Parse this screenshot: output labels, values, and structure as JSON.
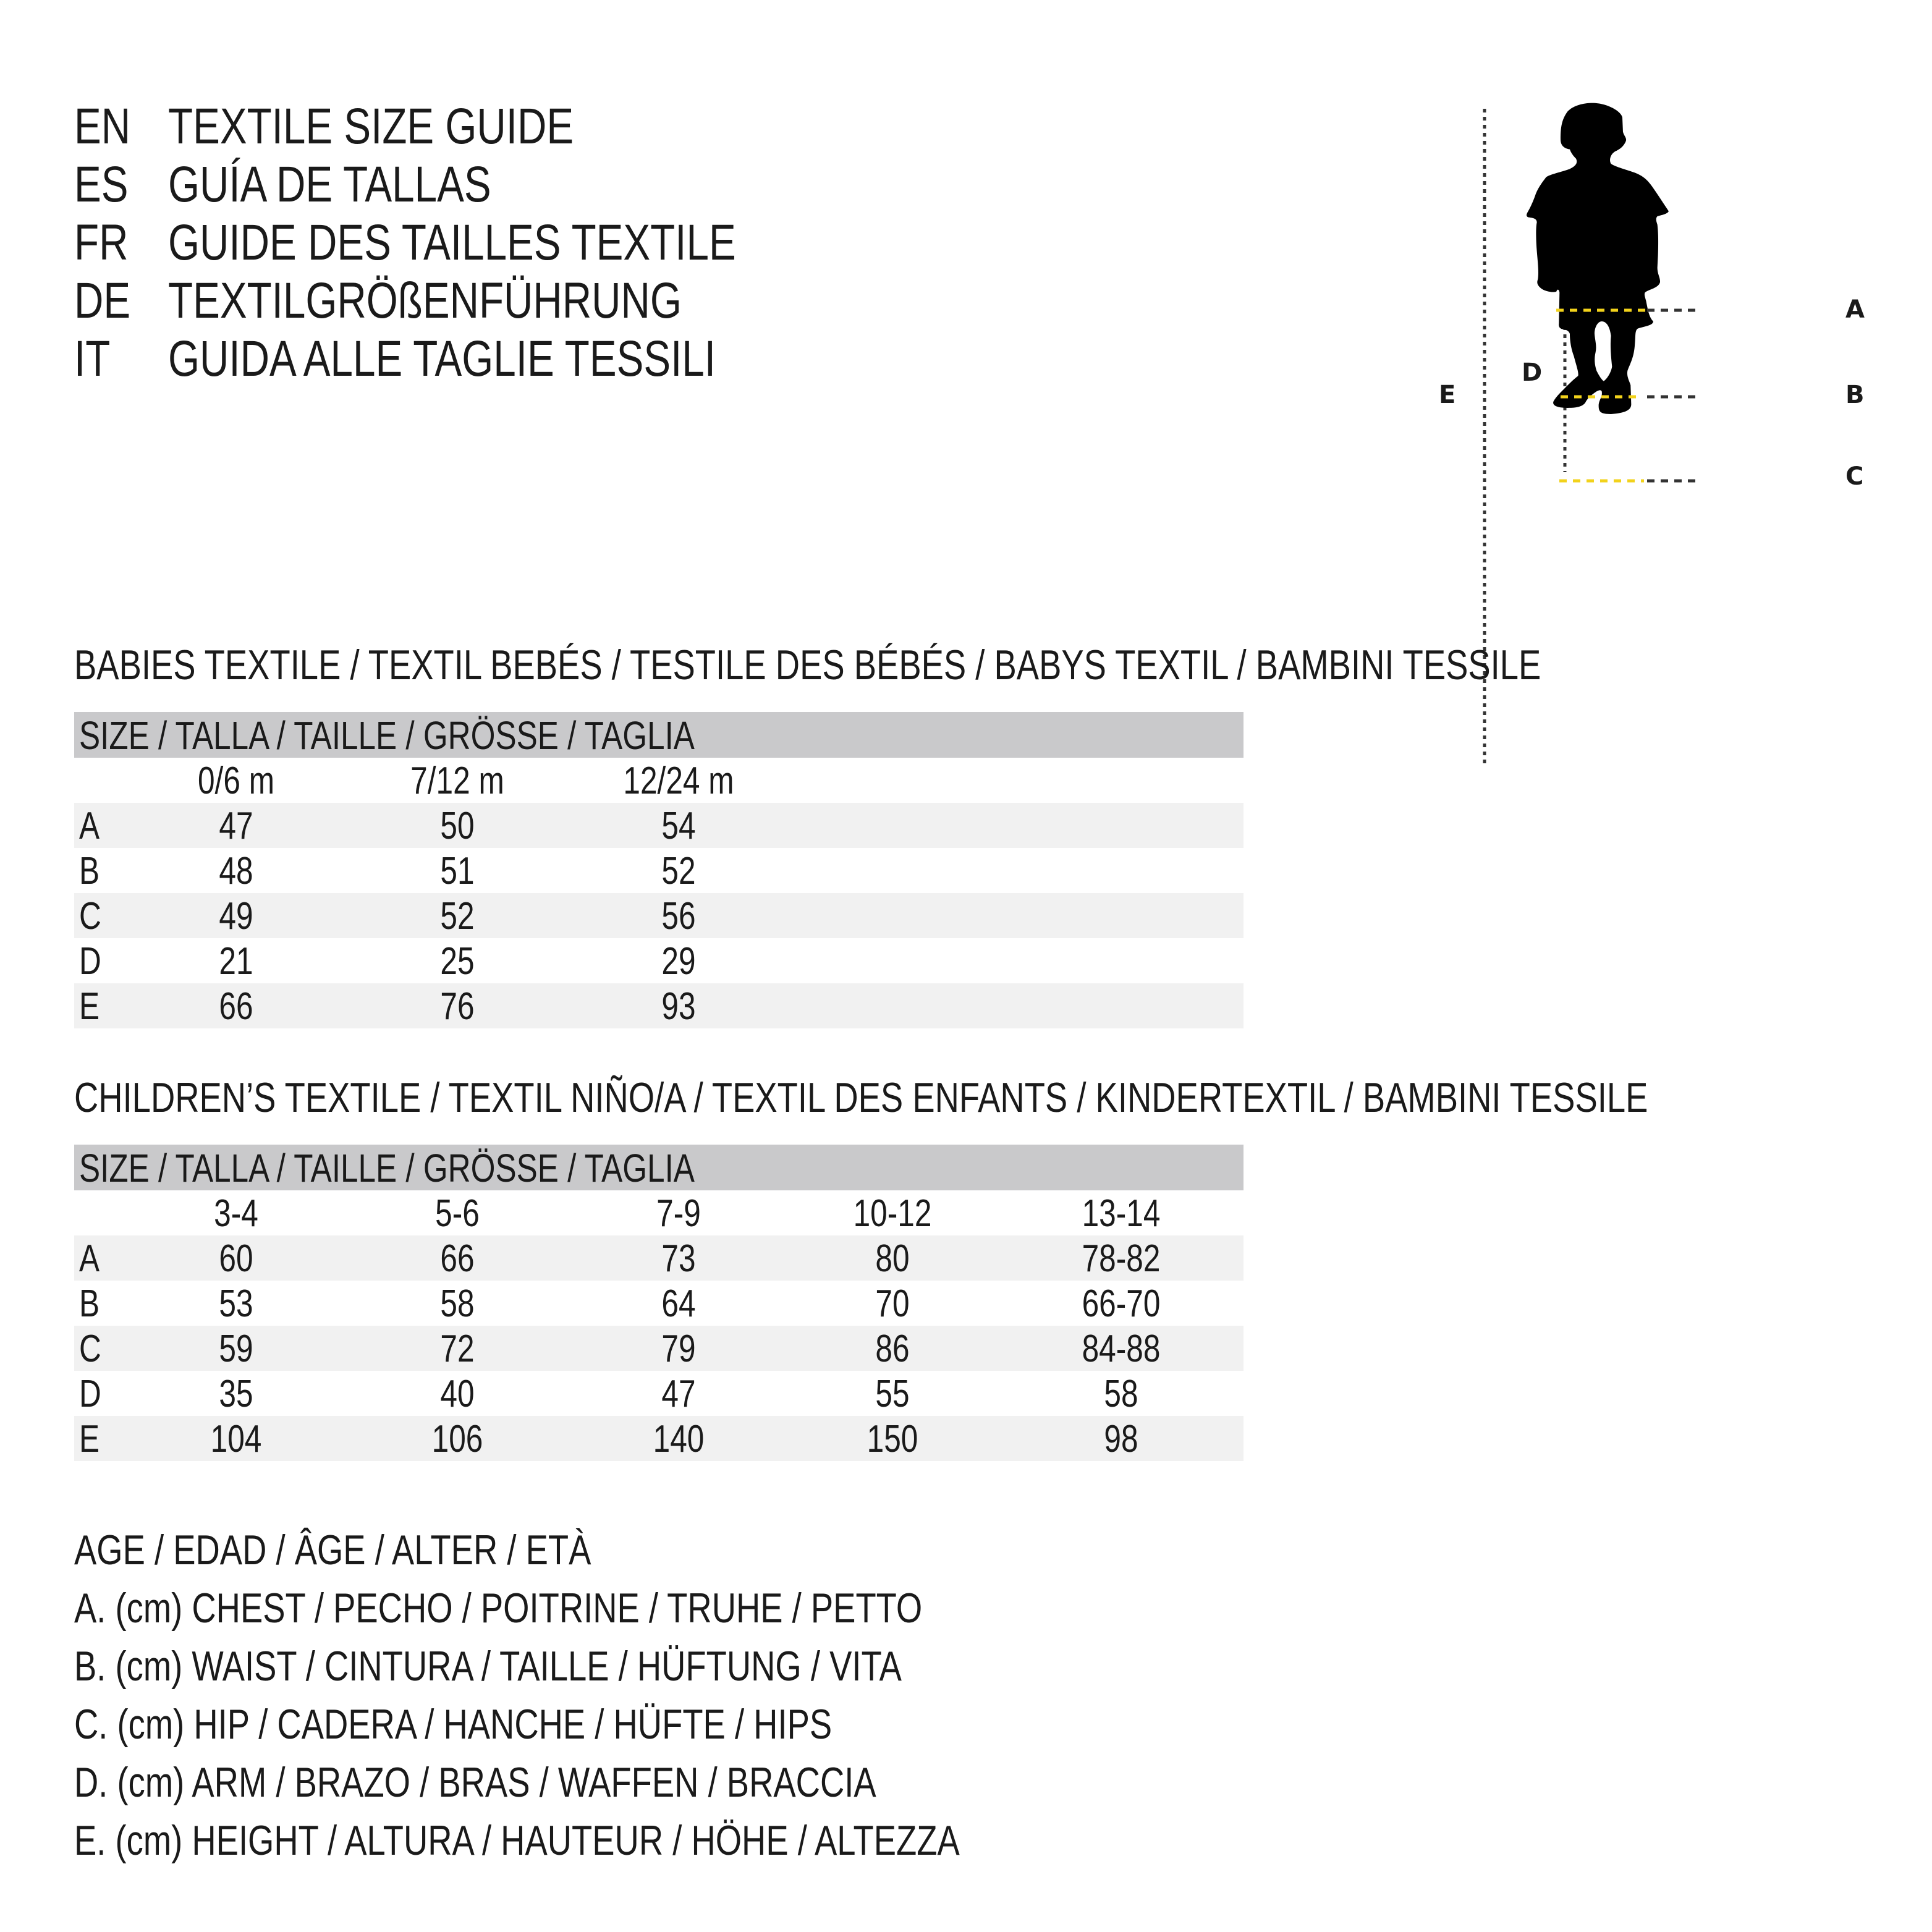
{
  "header": {
    "lines": [
      {
        "code": "EN",
        "text": "TEXTILE SIZE GUIDE"
      },
      {
        "code": "ES",
        "text": "GUÍA DE TALLAS"
      },
      {
        "code": "FR",
        "text": "GUIDE DES TAILLES TEXTILE"
      },
      {
        "code": "DE",
        "text": "TEXTILGRÖßENFÜHRUNG"
      },
      {
        "code": "IT",
        "text": "GUIDA ALLE TAGLIE TESSILI"
      }
    ]
  },
  "figure": {
    "labels": {
      "A": "A",
      "B": "B",
      "C": "C",
      "D": "D",
      "E": "E"
    },
    "measure_line_color": "#f2d21b",
    "guide_line_color": "#333333",
    "silhouette_color": "#000000"
  },
  "babies": {
    "title": "BABIES TEXTILE / TEXTIL BEBÉS / TESTILE DES BÉBÉS / BABYS TEXTIL / BAMBINI TESSILE",
    "size_header": "SIZE / TALLA / TAILLE / GRÖSSE / TAGLIA",
    "columns": [
      "0/6 m",
      "7/12 m",
      "12/24 m"
    ],
    "rows": [
      {
        "label": "A",
        "values": [
          "47",
          "50",
          "54"
        ]
      },
      {
        "label": "B",
        "values": [
          "48",
          "51",
          "52"
        ]
      },
      {
        "label": "C",
        "values": [
          "49",
          "52",
          "56"
        ]
      },
      {
        "label": "D",
        "values": [
          "21",
          "25",
          "29"
        ]
      },
      {
        "label": "E",
        "values": [
          "66",
          "76",
          "93"
        ]
      }
    ]
  },
  "children": {
    "title": "CHILDREN’S TEXTILE / TEXTIL NIÑO/A / TEXTIL DES ENFANTS / KINDERTEXTIL / BAMBINI TESSILE",
    "size_header": "SIZE / TALLA / TAILLE / GRÖSSE / TAGLIA",
    "columns": [
      "3-4",
      "5-6",
      "7-9",
      "10-12",
      "13-14"
    ],
    "rows": [
      {
        "label": "A",
        "values": [
          "60",
          "66",
          "73",
          "80",
          "78-82"
        ]
      },
      {
        "label": "B",
        "values": [
          "53",
          "58",
          "64",
          "70",
          "66-70"
        ]
      },
      {
        "label": "C",
        "values": [
          "59",
          "72",
          "79",
          "86",
          "84-88"
        ]
      },
      {
        "label": "D",
        "values": [
          "35",
          "40",
          "47",
          "55",
          "58"
        ]
      },
      {
        "label": "E",
        "values": [
          "104",
          "106",
          "140",
          "150",
          "98"
        ]
      }
    ]
  },
  "legend": [
    "AGE / EDAD / ÂGE / ALTER / ETÀ",
    "A. (cm) CHEST / PECHO / POITRINE / TRUHE / PETTO",
    "B. (cm) WAIST / CINTURA / TAILLE / HÜFTUNG / VITA",
    "C. (cm) HIP / CADERA / HANCHE / HÜFTE / HIPS",
    "D. (cm) ARM / BRAZO / BRAS / WAFFEN / BRACCIA",
    "E. (cm) HEIGHT / ALTURA / HAUTEUR / HÖHE / ALTEZZA"
  ]
}
